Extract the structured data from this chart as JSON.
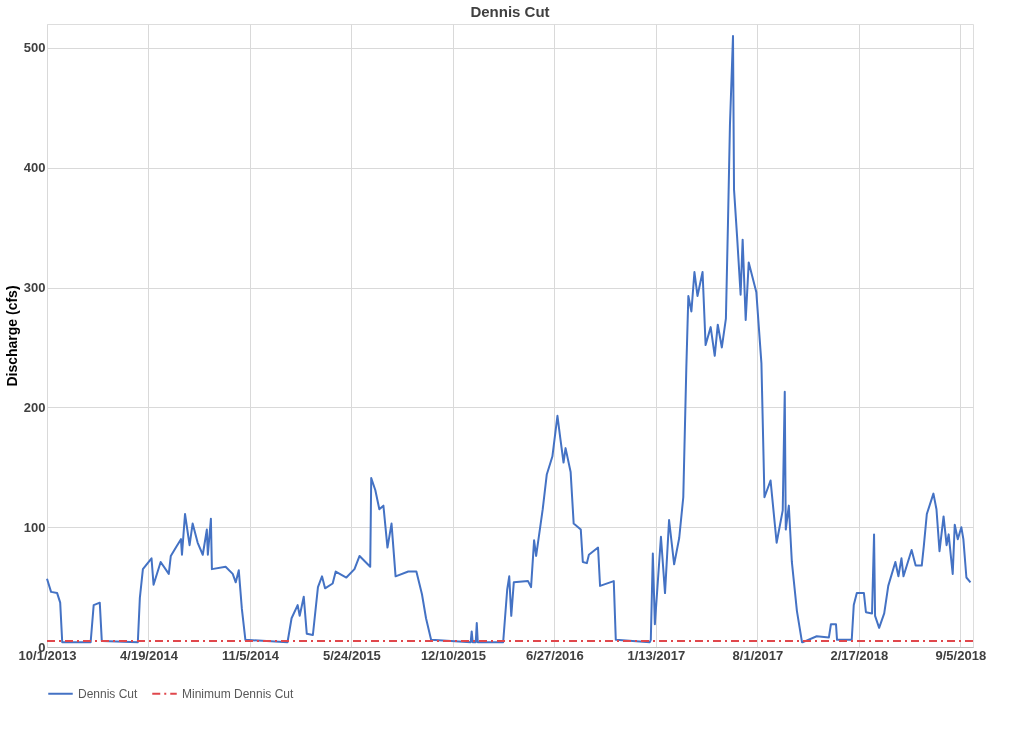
{
  "chart_data": {
    "type": "line",
    "title": "Dennis Cut",
    "ylabel": "Discharge (cfs)",
    "xlim": [
      "2013-10-01",
      "2018-09-30"
    ],
    "ylim": [
      0,
      520
    ],
    "yticks": [
      0,
      100,
      200,
      300,
      400,
      500
    ],
    "xticks": [
      {
        "value": "2013-10-01",
        "label": "10/1/2013"
      },
      {
        "value": "2014-04-19",
        "label": "4/19/2014"
      },
      {
        "value": "2014-11-05",
        "label": "11/5/2014"
      },
      {
        "value": "2015-05-24",
        "label": "5/24/2015"
      },
      {
        "value": "2015-12-10",
        "label": "12/10/2015"
      },
      {
        "value": "2016-06-27",
        "label": "6/27/2016"
      },
      {
        "value": "2017-01-13",
        "label": "1/13/2017"
      },
      {
        "value": "2017-08-01",
        "label": "8/1/2017"
      },
      {
        "value": "2018-02-17",
        "label": "2/17/2018"
      },
      {
        "value": "2018-09-05",
        "label": "9/5/2018"
      }
    ],
    "grid": true,
    "legend": "bottom",
    "marker": "none",
    "series": [
      {
        "name": "Dennis Cut",
        "color": "#4472c4",
        "line_style": "solid",
        "x": [
          "2013-10-01",
          "2013-10-09",
          "2013-10-21",
          "2013-10-27",
          "2013-10-31",
          "2013-12-26",
          "2014-01-01",
          "2014-01-13",
          "2014-01-17",
          "2014-03-29",
          "2014-04-02",
          "2014-04-08",
          "2014-04-25",
          "2014-04-29",
          "2014-05-13",
          "2014-05-29",
          "2014-06-02",
          "2014-06-12",
          "2014-06-22",
          "2014-06-24",
          "2014-06-30",
          "2014-07-09",
          "2014-07-15",
          "2014-07-25",
          "2014-08-04",
          "2014-08-12",
          "2014-08-14",
          "2014-08-20",
          "2014-08-22",
          "2014-09-18",
          "2014-10-02",
          "2014-10-08",
          "2014-10-14",
          "2014-10-20",
          "2014-10-27",
          "2015-01-18",
          "2015-01-26",
          "2015-02-07",
          "2015-02-11",
          "2015-02-19",
          "2015-02-25",
          "2015-03-09",
          "2015-03-19",
          "2015-03-27",
          "2015-04-02",
          "2015-04-17",
          "2015-04-23",
          "2015-05-14",
          "2015-05-30",
          "2015-06-09",
          "2015-06-30",
          "2015-07-02",
          "2015-07-10",
          "2015-07-18",
          "2015-07-26",
          "2015-08-03",
          "2015-08-11",
          "2015-08-19",
          "2015-09-13",
          "2015-09-29",
          "2015-10-10",
          "2015-10-18",
          "2015-10-28",
          "2016-01-14",
          "2016-01-16",
          "2016-01-18",
          "2016-01-24",
          "2016-01-26",
          "2016-01-28",
          "2016-03-18",
          "2016-03-26",
          "2016-03-30",
          "2016-04-03",
          "2016-04-08",
          "2016-05-06",
          "2016-05-12",
          "2016-05-18",
          "2016-05-22",
          "2016-06-04",
          "2016-06-12",
          "2016-06-23",
          "2016-07-03",
          "2016-07-09",
          "2016-07-15",
          "2016-07-19",
          "2016-07-29",
          "2016-08-04",
          "2016-08-18",
          "2016-08-22",
          "2016-08-30",
          "2016-09-03",
          "2016-09-21",
          "2016-09-25",
          "2016-10-22",
          "2016-10-26",
          "2017-01-01",
          "2017-01-03",
          "2017-01-07",
          "2017-01-11",
          "2017-01-23",
          "2017-01-31",
          "2017-02-08",
          "2017-02-18",
          "2017-02-28",
          "2017-03-08",
          "2017-03-14",
          "2017-03-18",
          "2017-03-24",
          "2017-03-30",
          "2017-04-05",
          "2017-04-15",
          "2017-04-21",
          "2017-05-01",
          "2017-05-09",
          "2017-05-15",
          "2017-05-23",
          "2017-05-31",
          "2017-06-04",
          "2017-06-08",
          "2017-06-14",
          "2017-06-16",
          "2017-06-22",
          "2017-06-29",
          "2017-07-03",
          "2017-07-09",
          "2017-07-15",
          "2017-07-30",
          "2017-08-09",
          "2017-08-15",
          "2017-08-27",
          "2017-09-08",
          "2017-09-20",
          "2017-09-24",
          "2017-09-26",
          "2017-10-02",
          "2017-10-08",
          "2017-10-18",
          "2017-10-28",
          "2017-10-30",
          "2017-11-26",
          "2017-12-20",
          "2017-12-24",
          "2018-01-03",
          "2018-01-05",
          "2018-02-03",
          "2018-02-07",
          "2018-02-13",
          "2018-02-27",
          "2018-03-03",
          "2018-03-15",
          "2018-03-19",
          "2018-03-21",
          "2018-03-29",
          "2018-04-08",
          "2018-04-16",
          "2018-04-30",
          "2018-05-06",
          "2018-05-12",
          "2018-05-16",
          "2018-06-01",
          "2018-06-09",
          "2018-06-21",
          "2018-06-25",
          "2018-07-01",
          "2018-07-14",
          "2018-07-20",
          "2018-07-26",
          "2018-08-03",
          "2018-08-09",
          "2018-08-13",
          "2018-08-21",
          "2018-08-25",
          "2018-08-31",
          "2018-09-07",
          "2018-09-11",
          "2018-09-17",
          "2018-09-25"
        ],
        "values": [
          57,
          46,
          45,
          37,
          4,
          4,
          35,
          37,
          5,
          4,
          41,
          65,
          74,
          52,
          71,
          61,
          76,
          83,
          90,
          77,
          111,
          85,
          103,
          87,
          77,
          98,
          77,
          107,
          65,
          67,
          61,
          54,
          64,
          32,
          6,
          4,
          24,
          35,
          26,
          42,
          11,
          10,
          50,
          59,
          49,
          53,
          63,
          58,
          65,
          76,
          67,
          141,
          131,
          115,
          118,
          83,
          103,
          59,
          63,
          63,
          44,
          24,
          6,
          4,
          13,
          4,
          4,
          20,
          4,
          4,
          48,
          59,
          26,
          54,
          55,
          50,
          89,
          76,
          115,
          144,
          159,
          193,
          173,
          154,
          166,
          146,
          103,
          98,
          71,
          70,
          77,
          83,
          51,
          55,
          6,
          4,
          6,
          78,
          19,
          92,
          45,
          106,
          69,
          91,
          125,
          233,
          293,
          280,
          313,
          293,
          313,
          252,
          267,
          243,
          269,
          250,
          274,
          352,
          436,
          510,
          382,
          343,
          294,
          340,
          273,
          321,
          296,
          237,
          125,
          139,
          87,
          114,
          213,
          98,
          118,
          71,
          30,
          4,
          4,
          9,
          8,
          19,
          19,
          6,
          6,
          35,
          45,
          45,
          29,
          28,
          94,
          26,
          16,
          28,
          51,
          71,
          59,
          74,
          59,
          81,
          68,
          68,
          84,
          111,
          128,
          115,
          80,
          109,
          85,
          94,
          61,
          102,
          90,
          100,
          90,
          58,
          54
        ]
      },
      {
        "name": "Minimum Dennis Cut",
        "color": "#e0474c",
        "line_style": "dashed",
        "x": [
          "2013-10-01",
          "2018-09-30"
        ],
        "values": [
          5,
          5
        ]
      }
    ]
  }
}
